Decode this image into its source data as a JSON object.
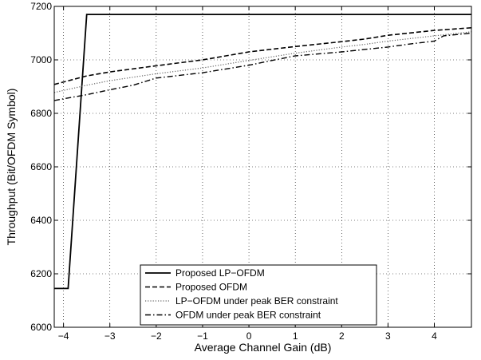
{
  "chart_data": {
    "type": "line",
    "title": "",
    "xlabel": "Average Channel Gain (dB)",
    "ylabel": "Throughput (Bit/OFDM Symbol)",
    "xlim": [
      -4.2,
      4.8
    ],
    "ylim": [
      6000,
      7200
    ],
    "grid": true,
    "legend_position": "bottom-center",
    "x_ticks": [
      -4,
      -3,
      -2,
      -1,
      0,
      1,
      2,
      3,
      4
    ],
    "y_ticks": [
      6000,
      6200,
      6400,
      6600,
      6800,
      7000,
      7200
    ],
    "x_tick_labels": [
      "−4",
      "−3",
      "−2",
      "−1",
      "0",
      "1",
      "2",
      "3",
      "4"
    ],
    "y_tick_labels": [
      "6000",
      "6200",
      "6400",
      "6600",
      "6800",
      "7000",
      "7200"
    ],
    "series": [
      {
        "name": "Proposed LP−OFDM",
        "style": "solid",
        "color": "#000000",
        "x": [
          -4.2,
          -3.9,
          -3.5,
          4.8
        ],
        "y": [
          6145,
          6145,
          7170,
          7170
        ]
      },
      {
        "name": "Proposed OFDM",
        "style": "dashed",
        "color": "#000000",
        "x": [
          -4.2,
          -3.5,
          -3.0,
          -2.0,
          -1.0,
          0.0,
          1.0,
          2.0,
          2.5,
          3.0,
          4.0,
          4.8
        ],
        "y": [
          6908,
          6940,
          6955,
          6978,
          7000,
          7030,
          7050,
          7068,
          7078,
          7092,
          7110,
          7120
        ]
      },
      {
        "name": "LP−OFDM under peak BER constraint",
        "style": "dotted",
        "color": "#666666",
        "x": [
          -4.2,
          -3.5,
          -3.0,
          -2.0,
          -1.0,
          0.0,
          1.0,
          2.0,
          2.5,
          3.0,
          4.0,
          4.8
        ],
        "y": [
          6878,
          6905,
          6922,
          6948,
          6970,
          6998,
          7025,
          7048,
          7058,
          7070,
          7090,
          7105
        ]
      },
      {
        "name": "OFDM under peak BER constraint",
        "style": "dashdot",
        "color": "#000000",
        "x": [
          -4.2,
          -3.5,
          -3.0,
          -2.5,
          -2.0,
          -1.0,
          0.0,
          0.5,
          1.0,
          2.0,
          3.0,
          3.5,
          4.0,
          4.2,
          4.8
        ],
        "y": [
          6848,
          6870,
          6888,
          6905,
          6932,
          6952,
          6980,
          6998,
          7015,
          7030,
          7048,
          7060,
          7070,
          7090,
          7100
        ]
      }
    ]
  }
}
